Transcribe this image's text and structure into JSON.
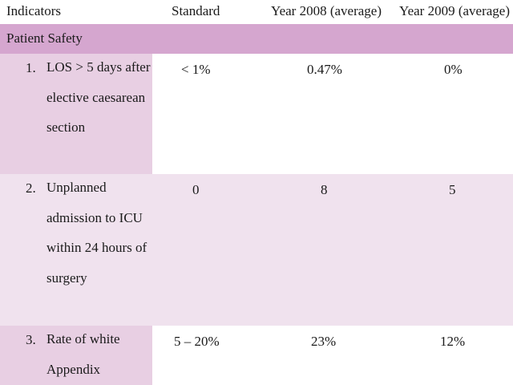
{
  "header": {
    "indicators": "Indicators",
    "standard": "Standard",
    "year2008": "Year 2008 (average)",
    "year2009": "Year 2009 (average)"
  },
  "section": {
    "title": "Patient Safety"
  },
  "rows": [
    {
      "number": "1.",
      "label": "LOS > 5 days after elective caesarean section",
      "standard": "< 1%",
      "year2008": "0.47%",
      "year2009": "0%"
    },
    {
      "number": "2.",
      "label": "Unplanned admission to ICU within 24 hours of surgery",
      "standard": "0",
      "year2008": "8",
      "year2009": "5"
    },
    {
      "number": "3.",
      "label": "Rate of white Appendix",
      "standard": "5 – 20%",
      "year2008": "23%",
      "year2009": "12%"
    }
  ],
  "colors": {
    "section_band": "#d5a6cf",
    "label_cell_dark": "#e8cfe3",
    "row_light": "#f0e2ee"
  }
}
